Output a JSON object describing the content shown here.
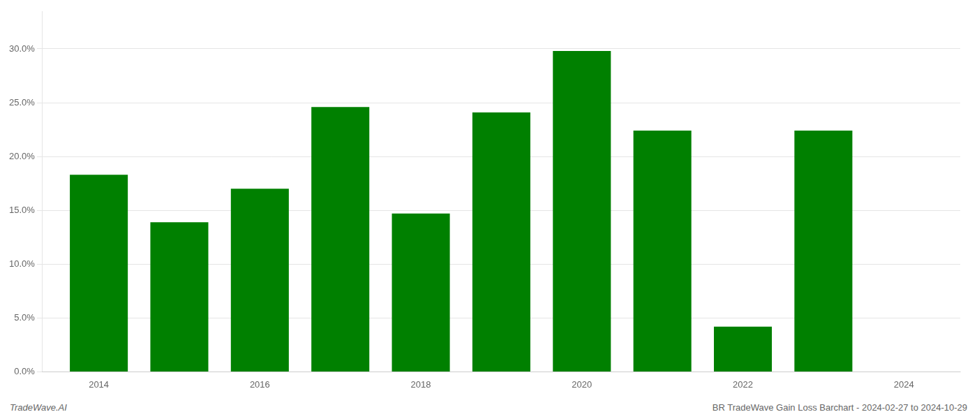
{
  "chart_data": {
    "type": "bar",
    "x": [
      2014,
      2015,
      2016,
      2017,
      2018,
      2019,
      2020,
      2021,
      2022,
      2023
    ],
    "values": [
      0.183,
      0.139,
      0.17,
      0.246,
      0.147,
      0.241,
      0.298,
      0.224,
      0.042,
      0.224
    ],
    "color": "#008000",
    "xlim": [
      2013.3,
      2024.7
    ],
    "xticks": [
      2014,
      2016,
      2018,
      2020,
      2022,
      2024
    ],
    "ylim": [
      0,
      0.335
    ],
    "yticks": [
      {
        "value": 0.0,
        "label": "0.0%"
      },
      {
        "value": 0.05,
        "label": "5.0%"
      },
      {
        "value": 0.1,
        "label": "10.0%"
      },
      {
        "value": 0.15,
        "label": "15.0%"
      },
      {
        "value": 0.2,
        "label": "20.0%"
      },
      {
        "value": 0.25,
        "label": "25.0%"
      },
      {
        "value": 0.3,
        "label": "30.0%"
      }
    ],
    "grid": true,
    "annotations": [
      "TradeWave.AI",
      "BR TradeWave Gain Loss Barchart - 2024-02-27 to 2024-10-29"
    ]
  }
}
